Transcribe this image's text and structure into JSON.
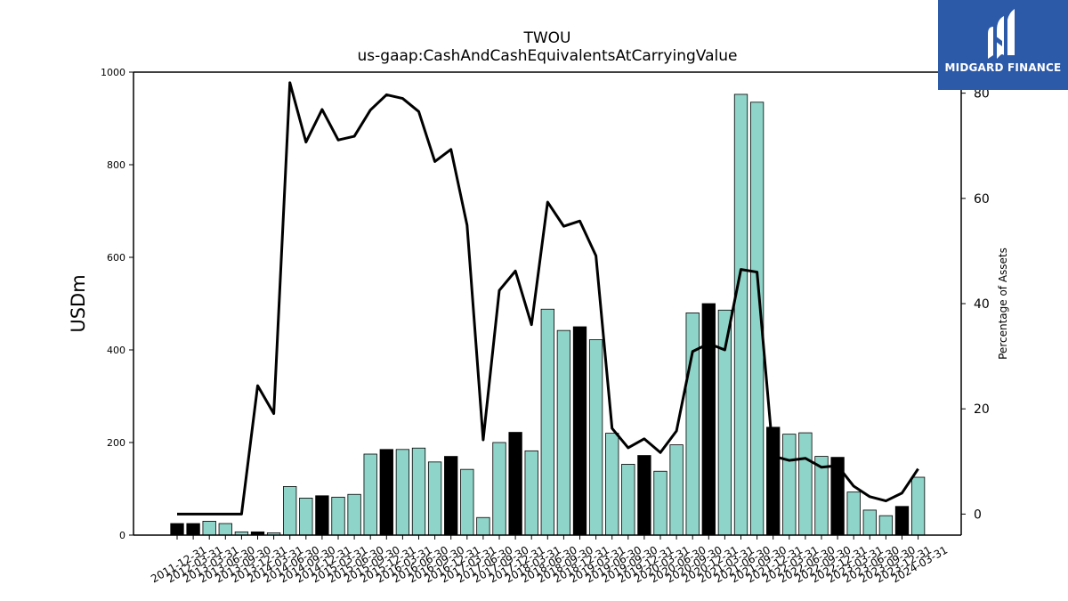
{
  "logo": {
    "text": "MIDGARD FINANCE",
    "icon": "midgard-m-logo",
    "bg_color": "#2c5aa8"
  },
  "chart_data": {
    "type": "bar",
    "title": "TWOU",
    "subtitle": "us-gaap:CashAndCashEquivalentsAtCarryingValue",
    "ylabel": "USDm",
    "y2label": "Percentage of Assets",
    "ylim": [
      0,
      1000
    ],
    "y2lim": [
      -4,
      84
    ],
    "yticks": [
      0,
      200,
      400,
      600,
      800,
      1000
    ],
    "y2ticks": [
      0,
      20,
      40,
      60,
      80
    ],
    "bar_color": "#8fd4c8",
    "highlight_color": "#000000",
    "categories": [
      "2011-12-31",
      "2012-03-31",
      "2013-03-31",
      "2013-06-30",
      "2013-09-30",
      "2013-12-31",
      "2014-03-31",
      "2014-06-30",
      "2014-09-30",
      "2014-12-31",
      "2015-03-31",
      "2015-06-30",
      "2015-09-30",
      "2015-12-31",
      "2016-03-31",
      "2016-06-30",
      "2016-09-30",
      "2016-12-31",
      "2017-03-31",
      "2017-06-30",
      "2017-09-30",
      "2017-12-31",
      "2018-03-31",
      "2018-06-30",
      "2018-09-30",
      "2018-12-31",
      "2019-03-31",
      "2019-06-30",
      "2019-09-30",
      "2019-12-31",
      "2020-03-31",
      "2020-06-30",
      "2020-09-30",
      "2020-12-31",
      "2021-03-31",
      "2021-06-30",
      "2021-09-30",
      "2021-12-31",
      "2022-03-31",
      "2022-06-30",
      "2022-09-30",
      "2022-12-31",
      "2023-03-31",
      "2023-06-30",
      "2023-09-30",
      "2023-12-31",
      "2024-03-31"
    ],
    "series": [
      {
        "type": "bar",
        "values": [
          25,
          25,
          30,
          25,
          7,
          7,
          5,
          105,
          80,
          85,
          82,
          88,
          175,
          185,
          185,
          188,
          158,
          170,
          142,
          38,
          200,
          222,
          182,
          488,
          442,
          450,
          422,
          220,
          153,
          172,
          138,
          195,
          480,
          500,
          486,
          952,
          935,
          233,
          218,
          221,
          170,
          168,
          93,
          54,
          42,
          62,
          125
        ],
        "highlight": [
          true,
          true,
          false,
          false,
          false,
          true,
          false,
          false,
          false,
          true,
          false,
          false,
          false,
          true,
          false,
          false,
          false,
          true,
          false,
          false,
          false,
          true,
          false,
          false,
          false,
          true,
          false,
          false,
          false,
          true,
          false,
          false,
          false,
          true,
          false,
          false,
          false,
          true,
          false,
          false,
          false,
          true,
          false,
          false,
          false,
          true,
          false
        ]
      },
      {
        "type": "line",
        "axis": "right",
        "color": "#000000",
        "values": [
          0,
          0,
          0,
          0,
          0,
          24.4,
          19.1,
          82,
          70.7,
          76.9,
          71.1,
          71.8,
          76.8,
          79.7,
          79,
          76.5,
          67,
          69.3,
          54.9,
          14.1,
          42.5,
          46.2,
          36,
          59.3,
          54.7,
          55.7,
          49.1,
          16.3,
          12.6,
          14.3,
          11.7,
          15.8,
          30.9,
          32.4,
          31.2,
          46.5,
          46,
          11,
          10.2,
          10.6,
          8.9,
          9.2,
          5.3,
          3.3,
          2.5,
          4,
          8.6
        ]
      }
    ]
  }
}
